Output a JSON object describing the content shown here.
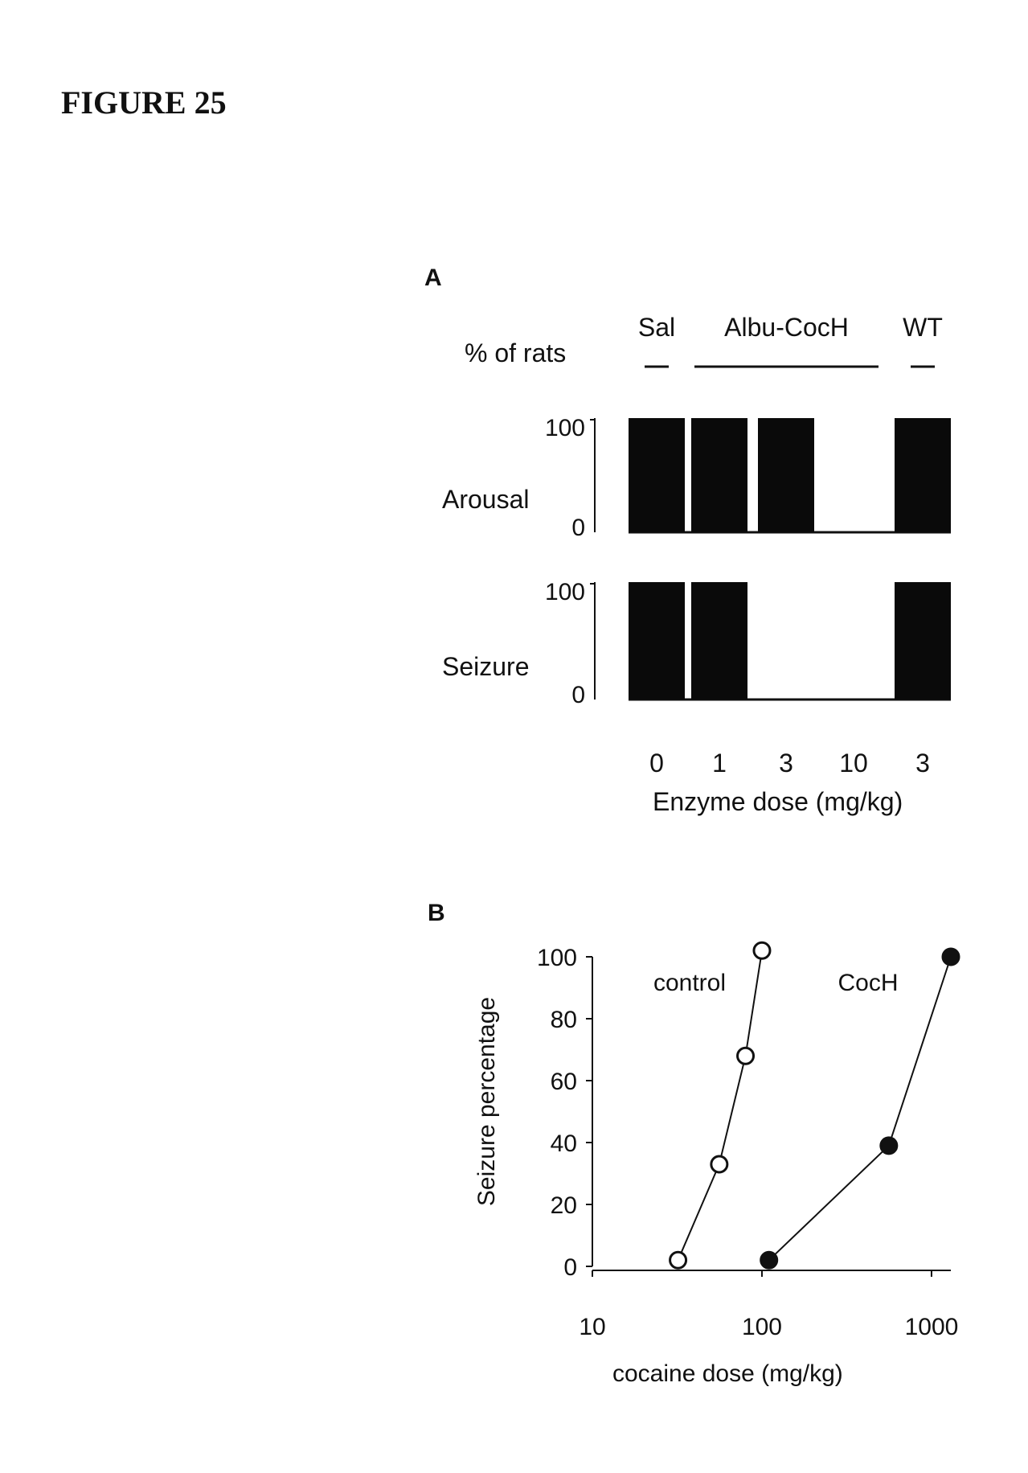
{
  "figure_title": "FIGURE 25",
  "chart_data": [
    {
      "panel": "A",
      "type": "bar",
      "ylabel": "% of rats",
      "group_labels": [
        {
          "name": "Sal",
          "span": [
            0,
            0
          ]
        },
        {
          "name": "Albu-CocH",
          "span": [
            1,
            3
          ]
        },
        {
          "name": "WT",
          "span": [
            4,
            4
          ]
        }
      ],
      "categories": [
        "0",
        "1",
        "3",
        "10",
        "3"
      ],
      "xlabel": "Enzyme dose (mg/kg)",
      "ylim": [
        0,
        100
      ],
      "yticks": [
        "100",
        "0"
      ],
      "series": [
        {
          "name": "Arousal",
          "values": [
            100,
            100,
            100,
            0,
            100
          ]
        },
        {
          "name": "Seizure",
          "values": [
            100,
            100,
            0,
            0,
            100
          ]
        }
      ]
    },
    {
      "panel": "B",
      "type": "line",
      "xscale": "log",
      "xlim": [
        10,
        1300
      ],
      "xticks": [
        10,
        100,
        1000
      ],
      "ylim": [
        0,
        100
      ],
      "yticks": [
        0,
        20,
        40,
        60,
        80,
        100
      ],
      "xlabel": "cocaine dose (mg/kg)",
      "ylabel": "Seizure percentage",
      "series": [
        {
          "name": "control",
          "marker": "open-circle",
          "x": [
            32,
            56,
            80,
            100
          ],
          "y": [
            2,
            33,
            68,
            102
          ]
        },
        {
          "name": "CocH",
          "marker": "filled-circle",
          "x": [
            110,
            560,
            1300
          ],
          "y": [
            2,
            39,
            100
          ]
        }
      ]
    }
  ]
}
